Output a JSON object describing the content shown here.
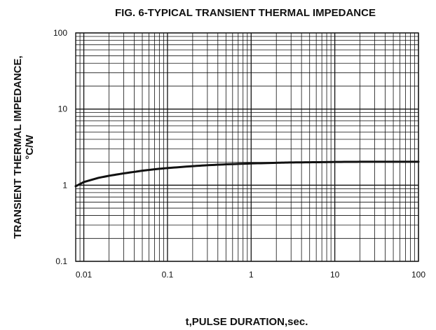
{
  "chart_data": {
    "type": "line",
    "title": "FIG. 6-TYPICAL TRANSIENT THERMAL IMPEDANCE",
    "xlabel": "t,PULSE DURATION,sec.",
    "ylabel_line1": "TRANSIENT THERMAL IMPEDANCE,",
    "ylabel_line2": "°C/W",
    "xscale": "log",
    "yscale": "log",
    "xlim": [
      0.008,
      100
    ],
    "ylim": [
      0.1,
      100
    ],
    "grid": true,
    "x_ticks": [
      {
        "value": 0.01,
        "label": "0.01"
      },
      {
        "value": 0.1,
        "label": "0.1"
      },
      {
        "value": 1,
        "label": "1"
      },
      {
        "value": 10,
        "label": "10"
      },
      {
        "value": 100,
        "label": "100"
      }
    ],
    "y_ticks": [
      {
        "value": 0.1,
        "label": "0.1"
      },
      {
        "value": 1,
        "label": "1"
      },
      {
        "value": 10,
        "label": "10"
      },
      {
        "value": 100,
        "label": "100"
      }
    ],
    "series": [
      {
        "x": [
          0.008,
          0.01,
          0.015,
          0.02,
          0.03,
          0.05,
          0.07,
          0.1,
          0.2,
          0.3,
          0.5,
          1,
          2,
          3,
          5,
          10,
          20,
          50,
          100
        ],
        "y": [
          0.97,
          1.1,
          1.25,
          1.33,
          1.43,
          1.55,
          1.62,
          1.68,
          1.78,
          1.83,
          1.88,
          1.93,
          1.97,
          1.99,
          2.0,
          2.02,
          2.03,
          2.03,
          2.03
        ]
      }
    ]
  }
}
